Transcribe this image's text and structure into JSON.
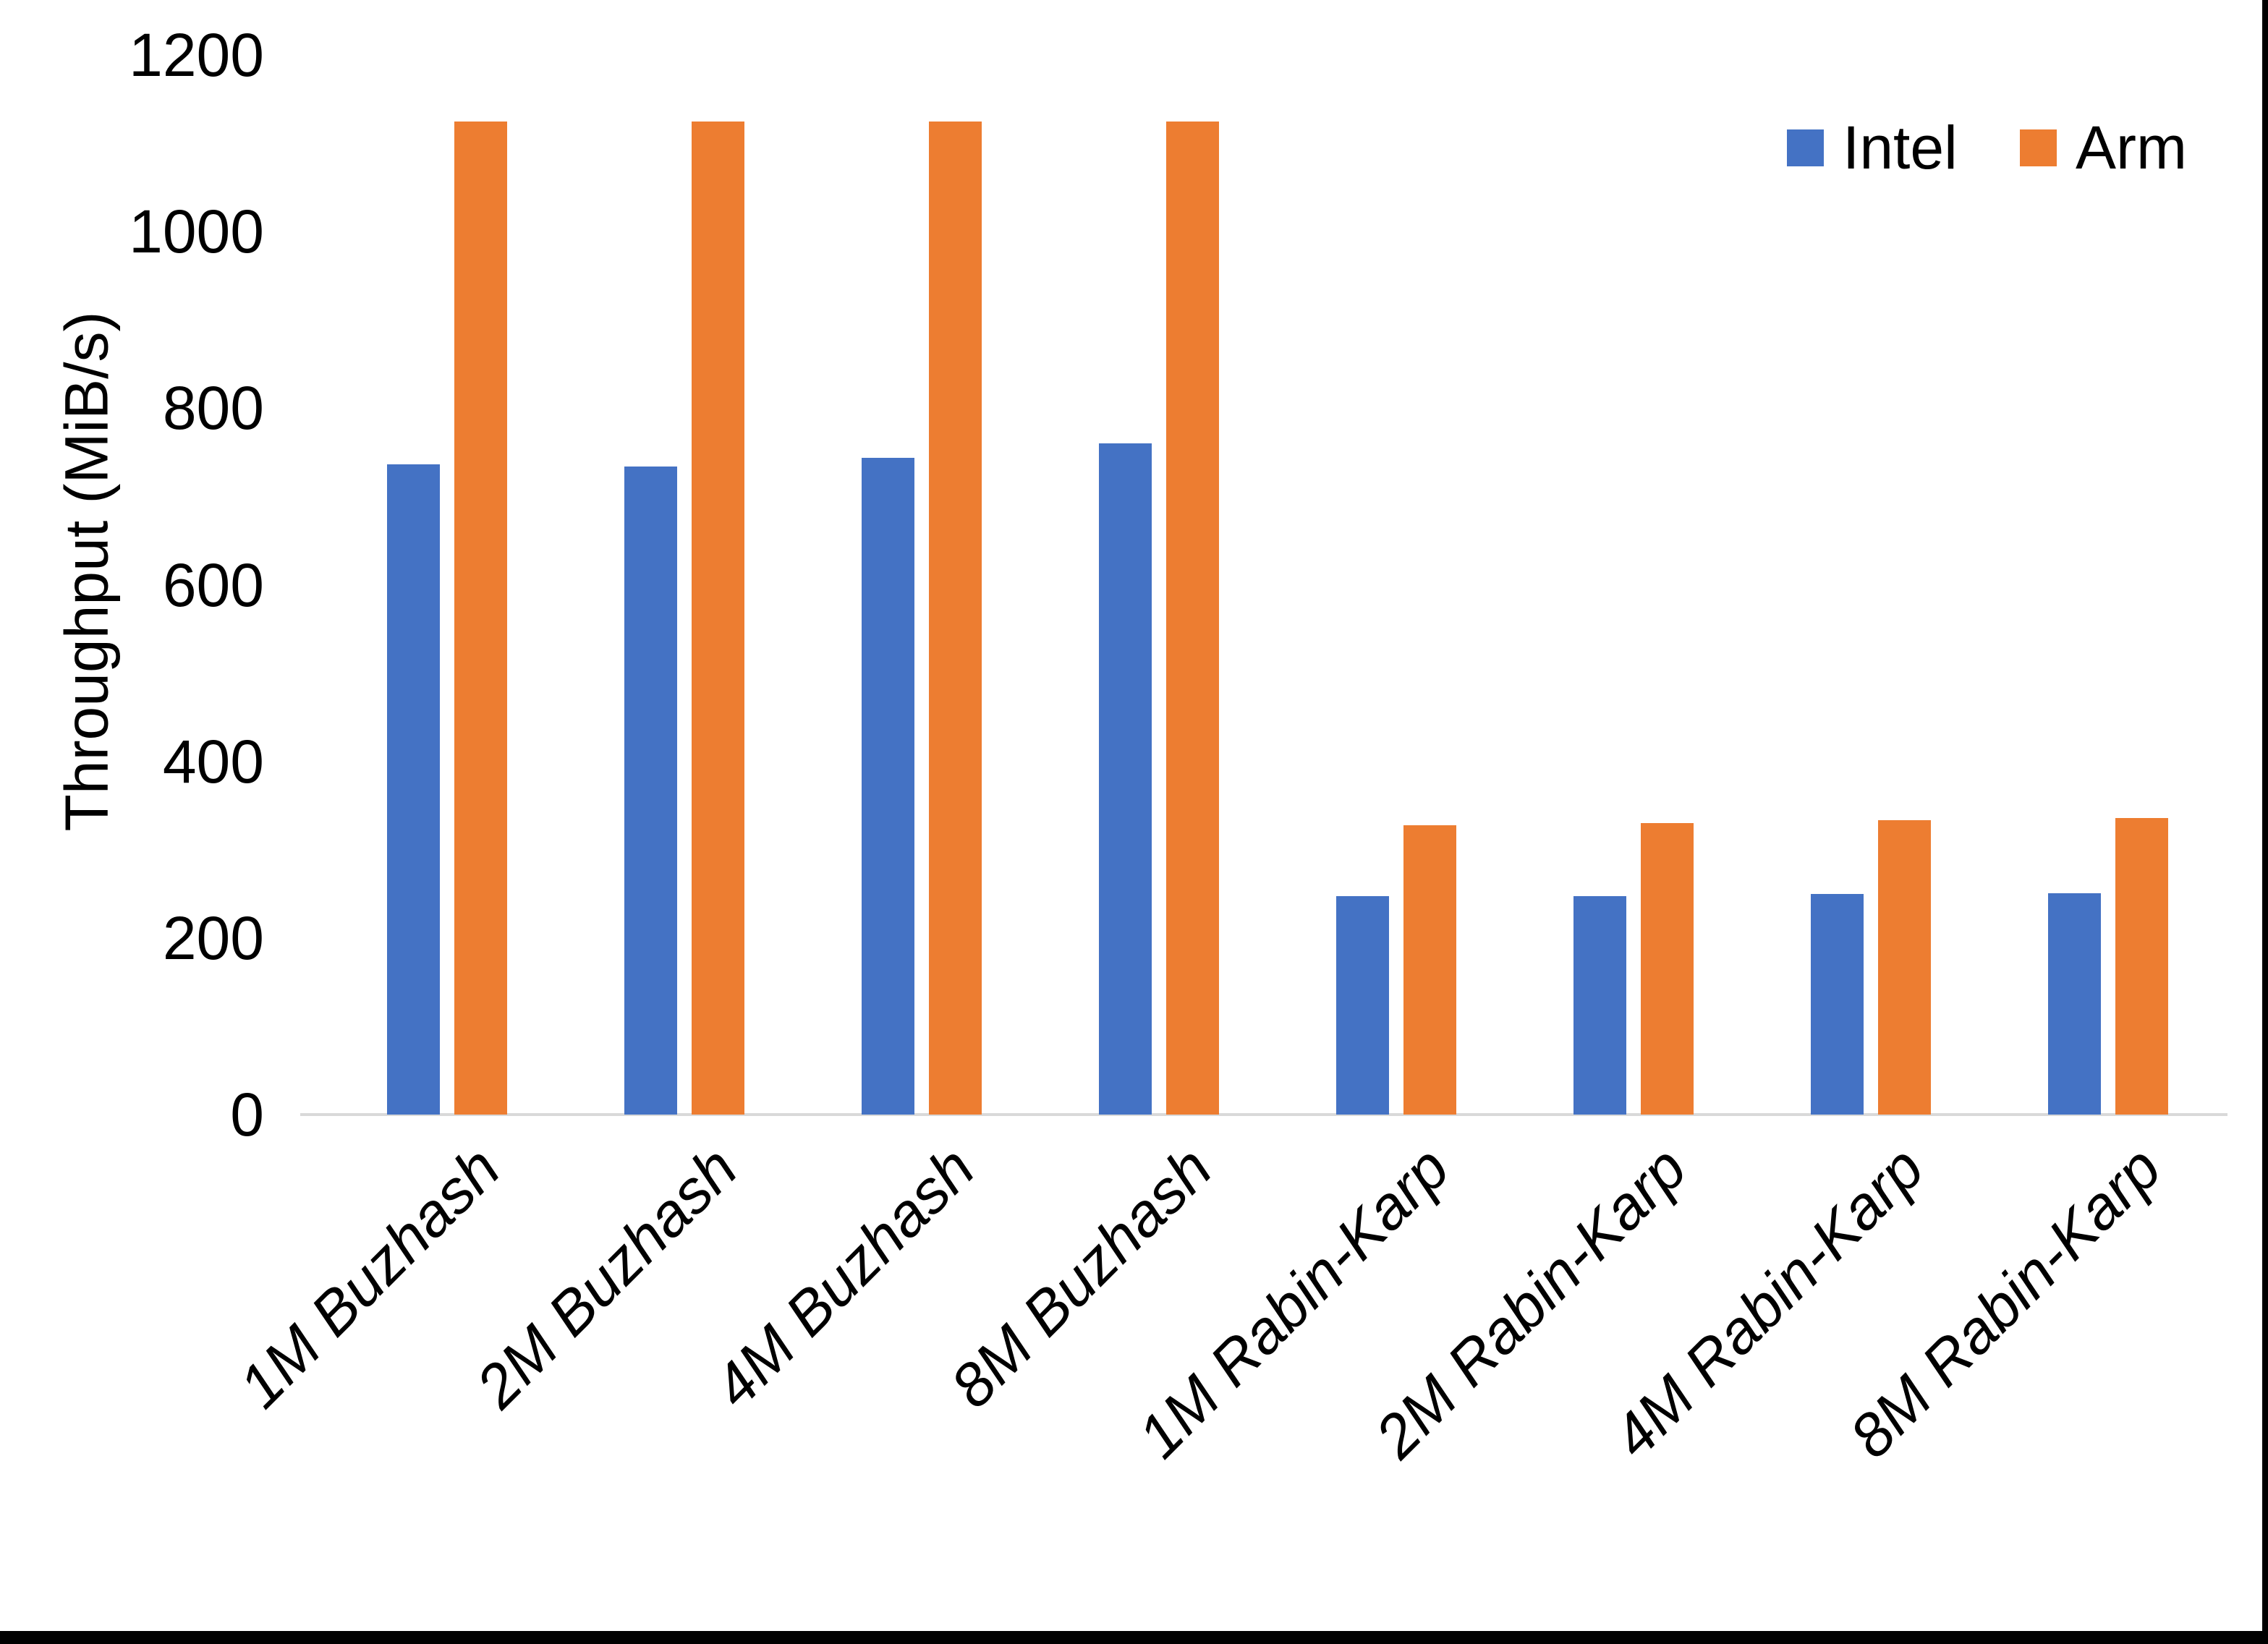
{
  "chart_data": {
    "type": "bar",
    "title": "",
    "xlabel": "",
    "ylabel": "Throughput (MiB/s)",
    "ylim": [
      0,
      1200
    ],
    "yticks": [
      0,
      200,
      400,
      600,
      800,
      1000,
      1200
    ],
    "grid": false,
    "legend_position": "top-right",
    "categories": [
      "1M Buzhash",
      "2M Buzhash",
      "4M Buzhash",
      "8M Buzhash",
      "1M Rabin-Karp",
      "2M Rabin-Karp",
      "4M Rabin-Karp",
      "8M Rabin-Karp"
    ],
    "series": [
      {
        "name": "Intel",
        "color": "#4472C4",
        "values": [
          736,
          734,
          744,
          760,
          247,
          247,
          250,
          251
        ]
      },
      {
        "name": "Arm",
        "color": "#ED7D31",
        "values": [
          1125,
          1125,
          1125,
          1125,
          328,
          330,
          333,
          336
        ]
      }
    ],
    "axis_line_color": "#D9D9D9"
  }
}
